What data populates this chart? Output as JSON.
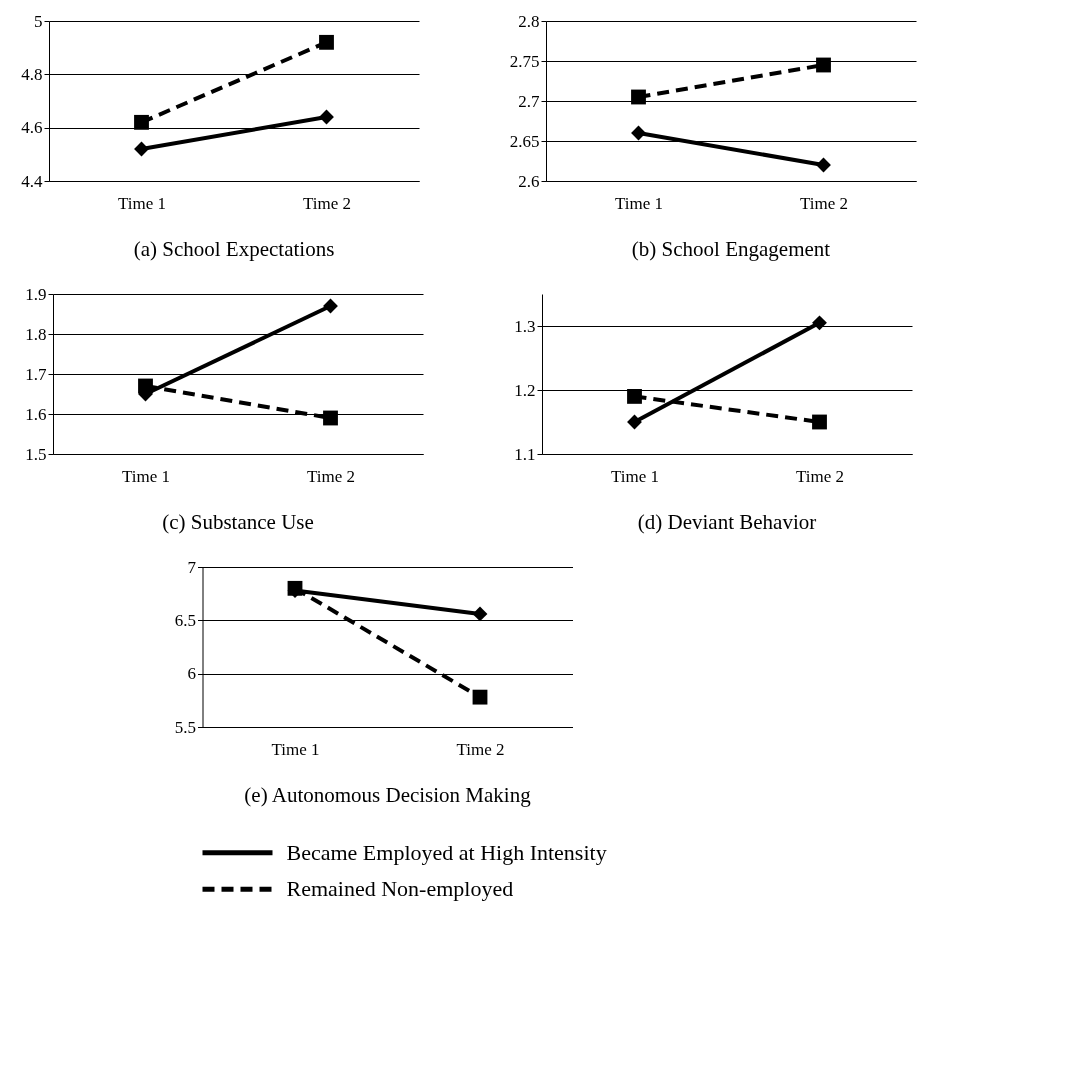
{
  "chart_data": [
    {
      "type": "line",
      "title": "(a) School Expectations",
      "categories": [
        "Time 1",
        "Time 2"
      ],
      "ylim": [
        4.4,
        5
      ],
      "yticks": [
        4.4,
        4.6,
        4.8,
        5
      ],
      "grid": "y",
      "series": [
        {
          "color": "#000000",
          "marker": "diamond",
          "line_style": "solid",
          "values": [
            4.52,
            4.64
          ]
        },
        {
          "color": "#000000",
          "marker": "square",
          "line_style": "dashed",
          "values": [
            4.62,
            4.92
          ]
        }
      ]
    },
    {
      "type": "line",
      "title": "(b) School Engagement",
      "categories": [
        "Time 1",
        "Time 2"
      ],
      "ylim": [
        2.6,
        2.8
      ],
      "yticks": [
        2.6,
        2.65,
        2.7,
        2.75,
        2.8
      ],
      "grid": "y",
      "series": [
        {
          "color": "#000000",
          "marker": "diamond",
          "line_style": "solid",
          "values": [
            2.66,
            2.62
          ]
        },
        {
          "color": "#000000",
          "marker": "square",
          "line_style": "dashed",
          "values": [
            2.705,
            2.745
          ]
        }
      ]
    },
    {
      "type": "line",
      "title": "(c) Substance Use",
      "categories": [
        "Time 1",
        "Time 2"
      ],
      "ylim": [
        1.5,
        1.9
      ],
      "yticks": [
        1.5,
        1.6,
        1.7,
        1.8,
        1.9
      ],
      "grid": "y",
      "series": [
        {
          "color": "#000000",
          "marker": "diamond",
          "line_style": "solid",
          "values": [
            1.65,
            1.87
          ]
        },
        {
          "color": "#000000",
          "marker": "square",
          "line_style": "dashed",
          "values": [
            1.67,
            1.59
          ]
        }
      ]
    },
    {
      "type": "line",
      "title": "(d) Deviant Behavior",
      "categories": [
        "Time 1",
        "Time 2"
      ],
      "ylim": [
        1.1,
        1.35
      ],
      "yticks": [
        1.1,
        1.2,
        1.3
      ],
      "grid": "y",
      "series": [
        {
          "color": "#000000",
          "marker": "diamond",
          "line_style": "solid",
          "values": [
            1.15,
            1.305
          ]
        },
        {
          "color": "#000000",
          "marker": "square",
          "line_style": "dashed",
          "values": [
            1.19,
            1.15
          ]
        }
      ]
    },
    {
      "type": "line",
      "title": "(e) Autonomous Decision Making",
      "categories": [
        "Time 1",
        "Time 2"
      ],
      "ylim": [
        5.5,
        7
      ],
      "yticks": [
        5.5,
        6,
        6.5,
        7
      ],
      "grid": "y",
      "legend": "bottom",
      "series": [
        {
          "name": "Became Employed at High Intensity",
          "color": "#000000",
          "marker": "diamond",
          "line_style": "solid",
          "values": [
            6.78,
            6.56
          ]
        },
        {
          "name": "Remained Non-employed",
          "color": "#000000",
          "marker": "square",
          "line_style": "dashed",
          "values": [
            6.8,
            5.78
          ]
        }
      ]
    }
  ]
}
